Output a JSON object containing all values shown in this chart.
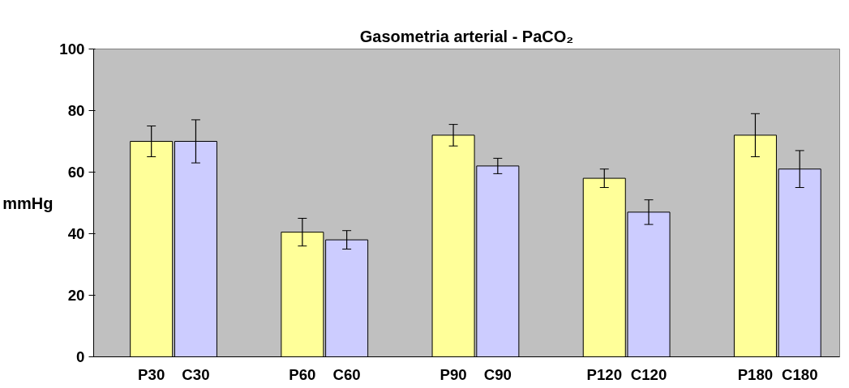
{
  "chart_data": {
    "type": "bar",
    "title": "Gasometria arterial - PaCO₂",
    "ylabel": "mmHg",
    "categories": [
      "P30",
      "C30",
      "P60",
      "C60",
      "P90",
      "C90",
      "P120",
      "C120",
      "P180",
      "C180"
    ],
    "values": [
      70,
      70,
      40.5,
      38,
      72,
      62,
      58,
      47,
      72,
      61
    ],
    "errors": [
      5,
      7,
      4.5,
      3,
      3.5,
      2.5,
      3,
      4,
      7,
      6
    ],
    "colors": [
      "#ffff99",
      "#ccccff",
      "#ffff99",
      "#ccccff",
      "#ffff99",
      "#ccccff",
      "#ffff99",
      "#ccccff",
      "#ffff99",
      "#ccccff"
    ],
    "ylim": [
      0,
      100
    ],
    "yticks": [
      0,
      20,
      40,
      60,
      80,
      100
    ],
    "grid": false
  }
}
